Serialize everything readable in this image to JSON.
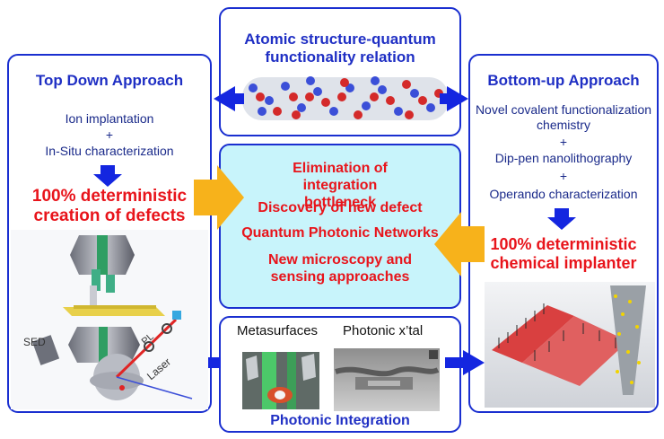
{
  "top": {
    "title": "Atomic structure-quantum functionality relation"
  },
  "left": {
    "title": "Top Down Approach",
    "step1": "Ion implantation",
    "plus": "+",
    "step2": "In-Situ characterization",
    "result": "100% deterministic creation of defects",
    "labels": {
      "sed": "SED",
      "pl": "PL",
      "laser": "Laser"
    }
  },
  "right": {
    "title": "Bottom-up Approach",
    "step1": "Novel covalent functionalization chemistry",
    "plus1": "+",
    "step2": "Dip-pen nanolithography",
    "plus2": "+",
    "step3": "Operando characterization",
    "result": "100% deterministic chemical implanter"
  },
  "center": {
    "items": [
      "Elimination of integration bottleneck",
      "Discovery of new defect",
      "Quantum Photonic Networks",
      "New microscopy and sensing approaches"
    ]
  },
  "bottom": {
    "label_meta": "Metasurfaces",
    "label_xtal": "Photonic x’tal",
    "title": "Photonic Integration"
  },
  "colors": {
    "border": "#1a2fd0",
    "title_blue": "#1f2fc4",
    "result_red": "#e8141b",
    "center_fill": "#c8f4fb",
    "orange_arrow": "#f7b21b",
    "blue_arrow": "#1426e0"
  }
}
